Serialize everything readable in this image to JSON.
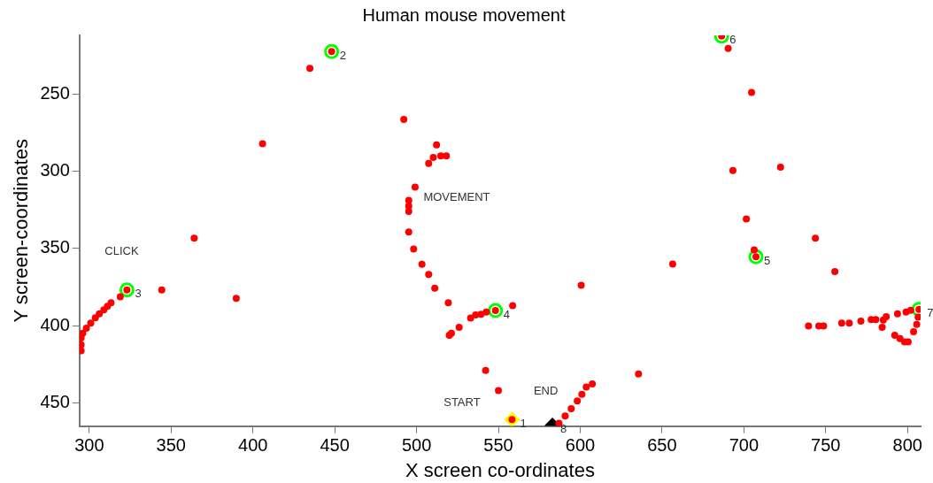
{
  "chart_data": {
    "type": "scatter",
    "title": "Human mouse movement",
    "xlabel": "X screen co-ordinates",
    "ylabel": "Y screen-coordinates",
    "xlim": [
      294,
      808
    ],
    "ylim": [
      465,
      212
    ],
    "xticks": [
      300,
      350,
      400,
      450,
      500,
      550,
      600,
      650,
      700,
      750,
      800
    ],
    "yticks": [
      250,
      300,
      350,
      400,
      450
    ],
    "grid": false,
    "legend": false,
    "series": [
      {
        "color": "#ff0000",
        "marker": "circle",
        "x": [
          448.1,
          434.8,
          405.9,
          364.1,
          323,
          344.3,
          389.8,
          318.9,
          313.3,
          311.1,
          308.9,
          306.1,
          303.7,
          300.9,
          298.2,
          296,
          295,
          295,
          295,
          492.2,
          512.2,
          510.2,
          514.8,
          518.2,
          507.4,
          499.1,
          495.2,
          495.2,
          495.2,
          495.2,
          498.2,
          503.3,
          507.4,
          511.1,
          519.4,
          521.3,
          520,
          526,
          533,
          536.1,
          539.4,
          542.6,
          548.2,
          558.7,
          600.6,
          542.2,
          550,
          558.3,
          587,
          590.8,
          594.5,
          598.2,
          601,
          603.7,
          607.4,
          635.6,
          686.4,
          690.4,
          704.7,
          722.4,
          693.3,
          701.5,
          743.7,
          706.3,
          707.4,
          656.5,
          755.6,
          739.5,
          745.8,
          748.7,
          759.8,
          764.4,
          771.5,
          777.8,
          780.6,
          784.5,
          785.2,
          787,
          793.9,
          799.1,
          801.9,
          807,
          806.5,
          805.6,
          803.7,
          800.4,
          798.2,
          795.4,
          792.2
        ],
        "values": [
          222.5,
          233.3,
          282.2,
          343.3,
          376.8,
          376.8,
          382.3,
          381.3,
          385.1,
          387.4,
          389.8,
          392.3,
          394.9,
          398.3,
          401.7,
          404.9,
          408,
          412.4,
          416.2,
          266.4,
          282.9,
          291,
          290.1,
          290.1,
          295,
          310.2,
          318.9,
          322.6,
          326,
          339.4,
          350.3,
          360.3,
          366.9,
          375.7,
          385.1,
          404.9,
          406.2,
          401.1,
          395.1,
          393,
          392.6,
          391.2,
          390.2,
          387,
          373.8,
          429,
          442,
          460.8,
          463.2,
          458.5,
          453.8,
          448.8,
          444.4,
          439.7,
          437.8,
          431.3,
          212.5,
          220.4,
          249,
          297.4,
          299.5,
          330.9,
          343.3,
          350.9,
          355.4,
          360.1,
          365,
          400.2,
          400.2,
          400.2,
          398.3,
          398.3,
          397,
          396,
          396,
          401.1,
          396.4,
          394.2,
          392.3,
          391.2,
          390.1,
          389.4,
          394.5,
          399.2,
          403.9,
          410.5,
          410.5,
          408.3,
          406.2
        ]
      },
      {
        "color": "#00ff00",
        "marker": "circle",
        "x": [
          448.1,
          323,
          548.2,
          707.4,
          686.4,
          807
        ],
        "values": [
          222.5,
          376.8,
          390.2,
          355.4,
          212.5,
          389.4
        ]
      },
      {
        "color": "#ffff00",
        "marker": "diamond",
        "x": [
          558.3
        ],
        "values": [
          460.8
        ]
      },
      {
        "color": "#000000",
        "marker": "diamond",
        "x": [
          583
        ],
        "values": [
          464.6
        ]
      }
    ],
    "annotations": [
      "CLICK",
      "MOVEMENT",
      "START",
      "END",
      {
        "text": "1",
        "x": 558.3,
        "y": 460.8
      },
      {
        "text": "2",
        "x": 448.1,
        "y": 222.5
      },
      {
        "text": "3",
        "x": 323,
        "y": 376.8
      },
      {
        "text": "4",
        "x": 548.2,
        "y": 390.2
      },
      {
        "text": "5",
        "x": 707.4,
        "y": 355.4
      },
      {
        "text": "6",
        "x": 686.4,
        "y": 212.5
      },
      {
        "text": "7",
        "x": 807,
        "y": 389.4
      },
      {
        "text": "8",
        "x": 583,
        "y": 464.6
      }
    ]
  }
}
